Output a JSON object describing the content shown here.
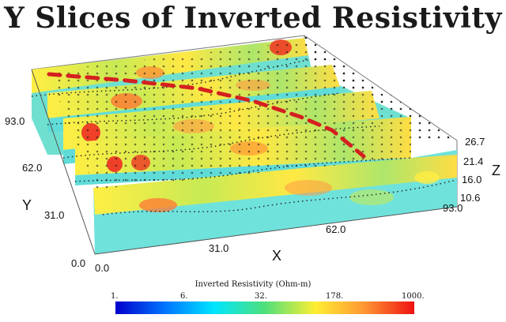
{
  "title": "Y Slices of Inverted Resistivity",
  "axes": {
    "x": {
      "label": "X",
      "ticks": [
        "0.0",
        "31.0",
        "62.0",
        "93.0"
      ]
    },
    "y": {
      "label": "Y",
      "ticks": [
        "0.0",
        "31.0",
        "62.0",
        "93.0"
      ]
    },
    "z": {
      "label": "Z",
      "ticks": [
        "10.6",
        "16.0",
        "21.4",
        "26.7"
      ]
    }
  },
  "colorbar": {
    "label": "Inverted Resistivity (Ohm-m)",
    "ticks": [
      "1.",
      "6.",
      "32.",
      "178.",
      "1000."
    ],
    "colors": [
      "#0000cc",
      "#0077ff",
      "#00e5ff",
      "#4ee07a",
      "#ffee33",
      "#ff9933",
      "#ee1111"
    ]
  }
}
